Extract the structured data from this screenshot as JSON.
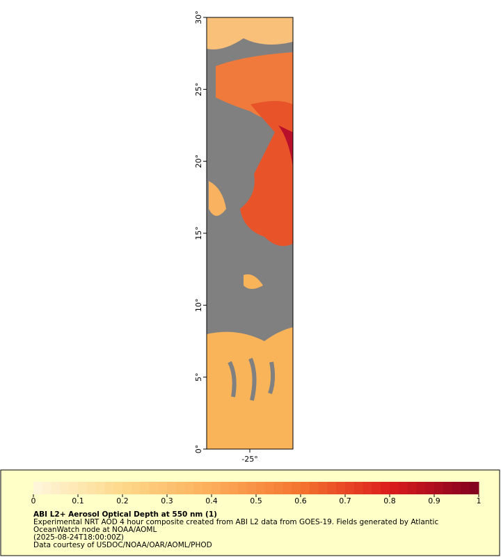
{
  "map": {
    "latlim": [
      0,
      30
    ],
    "lonlim": [
      -28,
      -22
    ],
    "lat_ticks": [
      {
        "value": 0,
        "label": "0°"
      },
      {
        "value": 5,
        "label": "5°"
      },
      {
        "value": 10,
        "label": "10°"
      },
      {
        "value": 15,
        "label": "15°"
      },
      {
        "value": 20,
        "label": "20°"
      },
      {
        "value": 25,
        "label": "25°"
      },
      {
        "value": 30,
        "label": "30°"
      }
    ],
    "lon_ticks": [
      {
        "value": -25,
        "label": "-25°"
      }
    ]
  },
  "colorbar": {
    "lim": [
      0,
      1
    ],
    "ticks": [
      0,
      0.1,
      0.2,
      0.3,
      0.4,
      0.5,
      0.6,
      0.7,
      0.8,
      0.9,
      1
    ],
    "colors": [
      "#fff7dc",
      "#fdd88a",
      "#fcae5a",
      "#f4742f",
      "#dc1c1c",
      "#800020"
    ]
  },
  "caption": {
    "title": "ABI L2+ Aerosol Optical Depth at 550 nm (1)",
    "lines": [
      "Experimental NRT AOD 4 hour composite created from ABI L2 data from GOES-19. Fields generated by Atlantic",
      "OceanWatch node at NOAA/AOML",
      "(2025-08-24T18:00:00Z)",
      "Data courtesy of USDOC/NOAA/OAR/AOML/PHOD"
    ]
  }
}
